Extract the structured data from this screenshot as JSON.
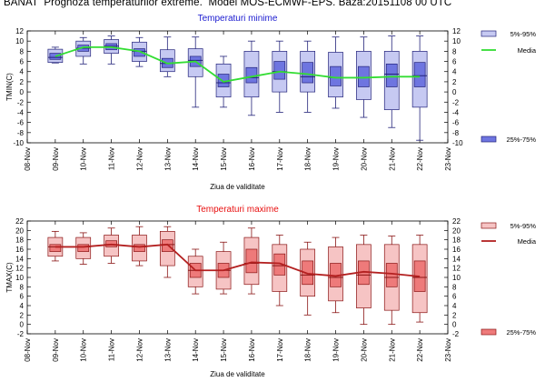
{
  "page_title": "BANAT  Prognoza temperaturilor extreme.  Model MOS-ECMWF-EPS. Baza:20151108 00 UTC",
  "chart_data": [
    {
      "type": "box",
      "title": "Temperaturi minime",
      "ylabel": "TMIN(C)",
      "xlabel": "Ziua de validitate",
      "x_tick_labels": [
        "08-Nov",
        "09-Nov",
        "10-Nov",
        "11-Nov",
        "12-Nov",
        "13-Nov",
        "14-Nov",
        "15-Nov",
        "16-Nov",
        "17-Nov",
        "18-Nov",
        "19-Nov",
        "20-Nov",
        "21-Nov",
        "22-Nov",
        "23-Nov"
      ],
      "y_ticks": [
        -10,
        -8,
        -6,
        -4,
        -2,
        0,
        2,
        4,
        6,
        8,
        10,
        12
      ],
      "ylim": [
        -10,
        12
      ],
      "legend": {
        "range_label": "5%-95%",
        "mean_label": "Media",
        "iqr_label": "25%-75%"
      },
      "colors": {
        "range_fill": "#c6c9f2",
        "iqr_fill": "#6e75e0",
        "border": "#23237a",
        "mean": "#33dd33",
        "title": "#1a1ad0"
      },
      "boxes": [
        {
          "day": "09-Nov",
          "p5": 5.8,
          "p25": 6.4,
          "median": 6.8,
          "p75": 7.6,
          "p95": 8.4,
          "min": 5.7,
          "max": 8.8
        },
        {
          "day": "10-Nov",
          "p5": 7.0,
          "p25": 8.0,
          "median": 8.6,
          "p75": 9.2,
          "p95": 10.0,
          "min": 5.5,
          "max": 10.7
        },
        {
          "day": "11-Nov",
          "p5": 7.6,
          "p25": 8.3,
          "median": 9.0,
          "p75": 9.5,
          "p95": 10.3,
          "min": 5.5,
          "max": 11.0
        },
        {
          "day": "12-Nov",
          "p5": 6.0,
          "p25": 7.0,
          "median": 8.0,
          "p75": 8.5,
          "p95": 9.8,
          "min": 5.0,
          "max": 10.7
        },
        {
          "day": "13-Nov",
          "p5": 4.0,
          "p25": 4.8,
          "median": 5.6,
          "p75": 6.6,
          "p95": 8.3,
          "min": 3.0,
          "max": 10.8
        },
        {
          "day": "14-Nov",
          "p5": 3.0,
          "p25": 5.0,
          "median": 6.2,
          "p75": 7.0,
          "p95": 8.5,
          "min": -3.0,
          "max": 10.8
        },
        {
          "day": "15-Nov",
          "p5": -1.0,
          "p25": 1.0,
          "median": 1.8,
          "p75": 3.5,
          "p95": 5.5,
          "min": -3.0,
          "max": 7.0
        },
        {
          "day": "16-Nov",
          "p5": -1.0,
          "p25": 1.8,
          "median": 2.8,
          "p75": 4.8,
          "p95": 8.0,
          "min": -4.6,
          "max": 10.0
        },
        {
          "day": "17-Nov",
          "p5": 0.0,
          "p25": 2.5,
          "median": 4.0,
          "p75": 6.0,
          "p95": 8.0,
          "min": -4.0,
          "max": 10.0
        },
        {
          "day": "18-Nov",
          "p5": 0.0,
          "p25": 1.8,
          "median": 3.0,
          "p75": 5.8,
          "p95": 8.0,
          "min": -4.0,
          "max": 10.0
        },
        {
          "day": "19-Nov",
          "p5": -1.0,
          "p25": 1.2,
          "median": 2.8,
          "p75": 5.0,
          "p95": 7.8,
          "min": -3.2,
          "max": 10.8
        },
        {
          "day": "20-Nov",
          "p5": -1.5,
          "p25": 1.0,
          "median": 2.8,
          "p75": 5.0,
          "p95": 8.0,
          "min": -5.0,
          "max": 10.8
        },
        {
          "day": "21-Nov",
          "p5": -3.5,
          "p25": 1.0,
          "median": 3.5,
          "p75": 5.5,
          "p95": 8.0,
          "min": -7.0,
          "max": 11.0
        },
        {
          "day": "22-Nov",
          "p5": -3.0,
          "p25": 1.0,
          "median": 3.2,
          "p75": 5.8,
          "p95": 8.0,
          "min": -9.5,
          "max": 11.0
        }
      ],
      "mean": [
        7.0,
        8.8,
        8.8,
        8.0,
        5.6,
        6.0,
        2.0,
        3.0,
        4.0,
        3.5,
        2.8,
        2.8,
        3.0,
        3.0
      ]
    },
    {
      "type": "box",
      "title": "Temperaturi maxime",
      "ylabel": "TMAX(C)",
      "xlabel": "Ziua de validitate",
      "x_tick_labels": [
        "08-Nov",
        "09-Nov",
        "10-Nov",
        "11-Nov",
        "12-Nov",
        "13-Nov",
        "14-Nov",
        "15-Nov",
        "16-Nov",
        "17-Nov",
        "18-Nov",
        "19-Nov",
        "20-Nov",
        "21-Nov",
        "22-Nov",
        "23-Nov"
      ],
      "y_ticks": [
        -2,
        0,
        2,
        4,
        6,
        8,
        10,
        12,
        14,
        16,
        18,
        20,
        22
      ],
      "ylim": [
        -2,
        22
      ],
      "legend": {
        "range_label": "5%-95%",
        "mean_label": "Media",
        "iqr_label": "25%-75%"
      },
      "colors": {
        "range_fill": "#f6c4c4",
        "iqr_fill": "#ee7a7a",
        "border": "#8a1515",
        "mean": "#b32020",
        "title": "#e81010"
      },
      "boxes": [
        {
          "day": "09-Nov",
          "p5": 14.5,
          "p25": 15.5,
          "median": 16.5,
          "p75": 17.0,
          "p95": 18.5,
          "min": 13.5,
          "max": 19.8
        },
        {
          "day": "10-Nov",
          "p5": 14.0,
          "p25": 15.5,
          "median": 16.5,
          "p75": 17.0,
          "p95": 18.5,
          "min": 12.8,
          "max": 19.5
        },
        {
          "day": "11-Nov",
          "p5": 14.5,
          "p25": 16.5,
          "median": 17.0,
          "p75": 17.8,
          "p95": 19.0,
          "min": 13.0,
          "max": 20.5
        },
        {
          "day": "12-Nov",
          "p5": 13.5,
          "p25": 15.5,
          "median": 16.5,
          "p75": 17.0,
          "p95": 19.0,
          "min": 12.5,
          "max": 20.8
        },
        {
          "day": "13-Nov",
          "p5": 12.5,
          "p25": 15.5,
          "median": 17.0,
          "p75": 18.0,
          "p95": 19.8,
          "min": 10.0,
          "max": 20.8
        },
        {
          "day": "14-Nov",
          "p5": 8.0,
          "p25": 10.0,
          "median": 11.5,
          "p75": 13.0,
          "p95": 14.5,
          "min": 6.5,
          "max": 16.0
        },
        {
          "day": "15-Nov",
          "p5": 7.5,
          "p25": 10.0,
          "median": 11.5,
          "p75": 13.0,
          "p95": 15.5,
          "min": 6.5,
          "max": 17.5
        },
        {
          "day": "16-Nov",
          "p5": 8.5,
          "p25": 11.0,
          "median": 13.0,
          "p75": 16.0,
          "p95": 18.5,
          "min": 6.5,
          "max": 20.5
        },
        {
          "day": "17-Nov",
          "p5": 7.0,
          "p25": 10.5,
          "median": 12.5,
          "p75": 15.0,
          "p95": 17.0,
          "min": 4.0,
          "max": 19.0
        },
        {
          "day": "18-Nov",
          "p5": 6.0,
          "p25": 8.5,
          "median": 10.5,
          "p75": 13.5,
          "p95": 16.0,
          "min": 2.0,
          "max": 17.5
        },
        {
          "day": "19-Nov",
          "p5": 5.0,
          "p25": 8.0,
          "median": 10.0,
          "p75": 13.0,
          "p95": 16.5,
          "min": 2.5,
          "max": 18.5
        },
        {
          "day": "20-Nov",
          "p5": 3.5,
          "p25": 8.5,
          "median": 10.5,
          "p75": 13.5,
          "p95": 17.0,
          "min": 0.0,
          "max": 19.0
        },
        {
          "day": "21-Nov",
          "p5": 3.0,
          "p25": 8.0,
          "median": 10.0,
          "p75": 13.0,
          "p95": 17.0,
          "min": 0.0,
          "max": 18.8
        },
        {
          "day": "22-Nov",
          "p5": 2.5,
          "p25": 7.0,
          "median": 10.0,
          "p75": 13.5,
          "p95": 17.0,
          "min": 0.5,
          "max": 19.0
        }
      ],
      "mean": [
        16.5,
        16.5,
        17.0,
        16.5,
        17.0,
        11.5,
        11.5,
        13.2,
        13.0,
        10.8,
        10.3,
        11.2,
        10.8,
        10.2
      ]
    }
  ]
}
